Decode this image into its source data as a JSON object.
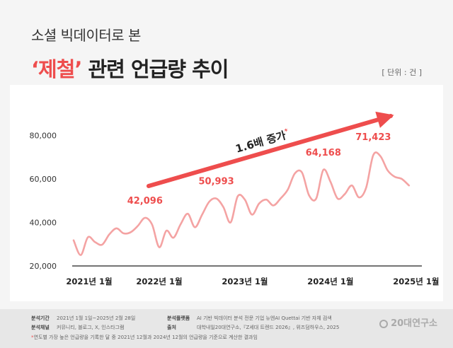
{
  "header": {
    "subtitle": "소셜 빅데이터로 본",
    "title_highlight": "‘제철’",
    "title_rest": " 관련 언급량 추이",
    "unit": "[ 단위 : 건 ]"
  },
  "colors": {
    "accent": "#ee4d4d",
    "line": "#f4a3a3",
    "axis_text": "#333333",
    "footer_bg": "#e7e7e7"
  },
  "chart_data": {
    "type": "line",
    "title": "",
    "xlabel": "",
    "ylabel": "",
    "ylim": [
      20000,
      100000
    ],
    "yticks": [
      20000,
      40000,
      60000,
      80000
    ],
    "ytick_labels": [
      "20,000",
      "40,000",
      "60,000",
      "80,000"
    ],
    "xtick_labels": [
      "2021년 1월",
      "2022년 1월",
      "2023년 1월",
      "2024년 1월",
      "2025년 1월"
    ],
    "xtick_index": [
      0,
      12,
      24,
      36,
      48
    ],
    "grid": false,
    "series": [
      {
        "values": [
          31800,
          25000,
          33200,
          31000,
          29800,
          34500,
          37300,
          35000,
          35500,
          38400,
          42100,
          39000,
          28600,
          36200,
          33000,
          39200,
          44000,
          37800,
          43500,
          49500,
          51000,
          47000,
          40000,
          52000,
          50500,
          43600,
          48700,
          50500,
          47800,
          51000,
          55000,
          62500,
          63000,
          52500,
          51000,
          64168,
          58700,
          51000,
          53000,
          57000,
          51500,
          56000,
          71000,
          70500,
          64000,
          61000,
          60000,
          57000
        ]
      }
    ],
    "annotations": [
      {
        "label": "42,096",
        "value": 42096,
        "index": 10
      },
      {
        "label": "50,993",
        "value": 50993,
        "index": 20
      },
      {
        "label": "64,168",
        "value": 64168,
        "index": 35
      },
      {
        "label": "71,423",
        "value": 71423,
        "index": 42
      }
    ],
    "trend_label": "1.6배 증가",
    "trend_mark": "*"
  },
  "footer": {
    "period_label": "분석기간",
    "period_value": "2021년 1월 1일~2025년 2월 28일",
    "channel_label": "분석채널",
    "channel_value": "커뮤니티, 블로그, X, 인스타그램",
    "platform_label": "분석플랫폼",
    "platform_value": "AI 기반 빅데이터 분석 전문 기업 뉴엔AI Quettai 기반 자체 검색",
    "source_label": "출처",
    "source_value": "대학내일20대연구소,『Z세대 트렌드 2026』, 위즈덤하우스, 2025",
    "note_mark": "*",
    "note_text": "연도별 가장 높은 언급량을 기록한 달 중 2021년 12월과 2024년 12월의 언급량을 기준으로 계산한 결과임",
    "logo_text": "20대연구소"
  }
}
